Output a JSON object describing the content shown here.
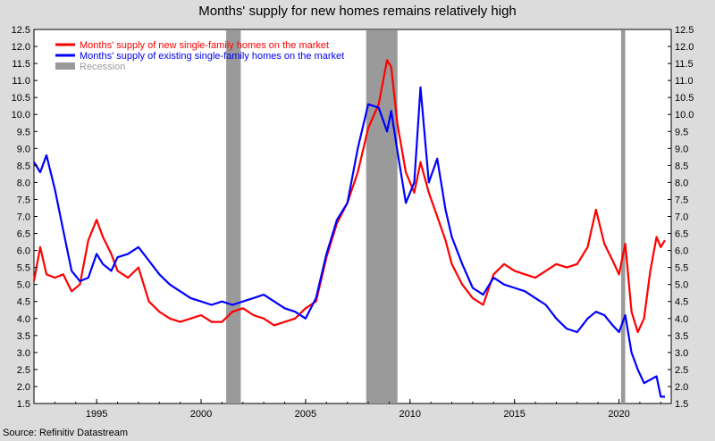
{
  "title": "Months' supply for new homes remains relatively high",
  "source": "Source: Refinitiv Datastream",
  "chart_data": {
    "type": "line",
    "title": "Months' supply for new homes remains relatively high",
    "x_range": [
      1992.0,
      2022.5
    ],
    "ylim": [
      1.5,
      12.5
    ],
    "y_ticks": [
      "1.5",
      "2.0",
      "2.5",
      "3.0",
      "3.5",
      "4.0",
      "4.5",
      "5.0",
      "5.5",
      "6.0",
      "6.5",
      "7.0",
      "7.5",
      "8.0",
      "8.5",
      "9.0",
      "9.5",
      "10.0",
      "10.5",
      "11.0",
      "11.5",
      "12.0",
      "12.5"
    ],
    "x_ticks": [
      "1995",
      "2000",
      "2005",
      "2010",
      "2015",
      "2020"
    ],
    "grid": false,
    "dual_y_axis": true,
    "legend_position": "top-left",
    "recessions": [
      [
        2001.2,
        2001.9
      ],
      [
        2007.9,
        2009.4
      ],
      [
        2020.1,
        2020.3
      ]
    ],
    "series": [
      {
        "name": "Months' supply of new single-family homes on the market",
        "color": "#ff0000",
        "points": [
          [
            1992.0,
            5.1
          ],
          [
            1992.3,
            6.1
          ],
          [
            1992.6,
            5.3
          ],
          [
            1993.0,
            5.2
          ],
          [
            1993.4,
            5.3
          ],
          [
            1993.8,
            4.8
          ],
          [
            1994.2,
            5.0
          ],
          [
            1994.6,
            6.3
          ],
          [
            1995.0,
            6.9
          ],
          [
            1995.3,
            6.4
          ],
          [
            1995.7,
            5.9
          ],
          [
            1996.0,
            5.4
          ],
          [
            1996.5,
            5.2
          ],
          [
            1997.0,
            5.5
          ],
          [
            1997.5,
            4.5
          ],
          [
            1998.0,
            4.2
          ],
          [
            1998.5,
            4.0
          ],
          [
            1999.0,
            3.9
          ],
          [
            1999.5,
            4.0
          ],
          [
            2000.0,
            4.1
          ],
          [
            2000.5,
            3.9
          ],
          [
            2001.0,
            3.9
          ],
          [
            2001.5,
            4.2
          ],
          [
            2002.0,
            4.3
          ],
          [
            2002.5,
            4.1
          ],
          [
            2003.0,
            4.0
          ],
          [
            2003.5,
            3.8
          ],
          [
            2004.0,
            3.9
          ],
          [
            2004.5,
            4.0
          ],
          [
            2005.0,
            4.3
          ],
          [
            2005.5,
            4.5
          ],
          [
            2006.0,
            5.8
          ],
          [
            2006.5,
            6.8
          ],
          [
            2007.0,
            7.4
          ],
          [
            2007.5,
            8.3
          ],
          [
            2008.0,
            9.6
          ],
          [
            2008.5,
            10.3
          ],
          [
            2008.9,
            11.6
          ],
          [
            2009.1,
            11.4
          ],
          [
            2009.4,
            9.7
          ],
          [
            2009.8,
            8.3
          ],
          [
            2010.2,
            7.7
          ],
          [
            2010.5,
            8.6
          ],
          [
            2010.9,
            7.7
          ],
          [
            2011.3,
            7.0
          ],
          [
            2011.7,
            6.3
          ],
          [
            2012.0,
            5.6
          ],
          [
            2012.5,
            5.0
          ],
          [
            2013.0,
            4.6
          ],
          [
            2013.5,
            4.4
          ],
          [
            2014.0,
            5.3
          ],
          [
            2014.5,
            5.6
          ],
          [
            2015.0,
            5.4
          ],
          [
            2015.5,
            5.3
          ],
          [
            2016.0,
            5.2
          ],
          [
            2016.5,
            5.4
          ],
          [
            2017.0,
            5.6
          ],
          [
            2017.5,
            5.5
          ],
          [
            2018.0,
            5.6
          ],
          [
            2018.5,
            6.1
          ],
          [
            2018.9,
            7.2
          ],
          [
            2019.3,
            6.2
          ],
          [
            2019.7,
            5.7
          ],
          [
            2020.0,
            5.3
          ],
          [
            2020.3,
            6.2
          ],
          [
            2020.6,
            4.2
          ],
          [
            2020.9,
            3.6
          ],
          [
            2021.2,
            4.0
          ],
          [
            2021.5,
            5.4
          ],
          [
            2021.8,
            6.4
          ],
          [
            2022.0,
            6.1
          ],
          [
            2022.2,
            6.3
          ]
        ]
      },
      {
        "name": "Months' supply of existing single-family homes on the market",
        "color": "#0000ff",
        "points": [
          [
            1992.0,
            8.6
          ],
          [
            1992.3,
            8.3
          ],
          [
            1992.6,
            8.8
          ],
          [
            1993.0,
            7.8
          ],
          [
            1993.4,
            6.6
          ],
          [
            1993.8,
            5.4
          ],
          [
            1994.2,
            5.1
          ],
          [
            1994.6,
            5.2
          ],
          [
            1995.0,
            5.9
          ],
          [
            1995.3,
            5.6
          ],
          [
            1995.7,
            5.4
          ],
          [
            1996.0,
            5.8
          ],
          [
            1996.5,
            5.9
          ],
          [
            1997.0,
            6.1
          ],
          [
            1997.5,
            5.7
          ],
          [
            1998.0,
            5.3
          ],
          [
            1998.5,
            5.0
          ],
          [
            1999.0,
            4.8
          ],
          [
            1999.5,
            4.6
          ],
          [
            2000.0,
            4.5
          ],
          [
            2000.5,
            4.4
          ],
          [
            2001.0,
            4.5
          ],
          [
            2001.5,
            4.4
          ],
          [
            2002.0,
            4.5
          ],
          [
            2002.5,
            4.6
          ],
          [
            2003.0,
            4.7
          ],
          [
            2003.5,
            4.5
          ],
          [
            2004.0,
            4.3
          ],
          [
            2004.5,
            4.2
          ],
          [
            2005.0,
            4.0
          ],
          [
            2005.5,
            4.6
          ],
          [
            2006.0,
            5.9
          ],
          [
            2006.5,
            6.9
          ],
          [
            2007.0,
            7.4
          ],
          [
            2007.5,
            9.0
          ],
          [
            2008.0,
            10.3
          ],
          [
            2008.5,
            10.2
          ],
          [
            2008.9,
            9.5
          ],
          [
            2009.1,
            10.1
          ],
          [
            2009.4,
            8.9
          ],
          [
            2009.8,
            7.4
          ],
          [
            2010.2,
            8.0
          ],
          [
            2010.5,
            10.8
          ],
          [
            2010.9,
            8.0
          ],
          [
            2011.3,
            8.7
          ],
          [
            2011.7,
            7.2
          ],
          [
            2012.0,
            6.4
          ],
          [
            2012.5,
            5.6
          ],
          [
            2013.0,
            4.9
          ],
          [
            2013.5,
            4.7
          ],
          [
            2014.0,
            5.2
          ],
          [
            2014.5,
            5.0
          ],
          [
            2015.0,
            4.9
          ],
          [
            2015.5,
            4.8
          ],
          [
            2016.0,
            4.6
          ],
          [
            2016.5,
            4.4
          ],
          [
            2017.0,
            4.0
          ],
          [
            2017.5,
            3.7
          ],
          [
            2018.0,
            3.6
          ],
          [
            2018.5,
            4.0
          ],
          [
            2018.9,
            4.2
          ],
          [
            2019.3,
            4.1
          ],
          [
            2019.7,
            3.8
          ],
          [
            2020.0,
            3.6
          ],
          [
            2020.3,
            4.1
          ],
          [
            2020.6,
            3.0
          ],
          [
            2020.9,
            2.5
          ],
          [
            2021.2,
            2.1
          ],
          [
            2021.5,
            2.2
          ],
          [
            2021.8,
            2.3
          ],
          [
            2022.0,
            1.7
          ],
          [
            2022.2,
            1.7
          ]
        ]
      },
      {
        "name": "Recession",
        "color": "#9a9a9a"
      }
    ]
  }
}
